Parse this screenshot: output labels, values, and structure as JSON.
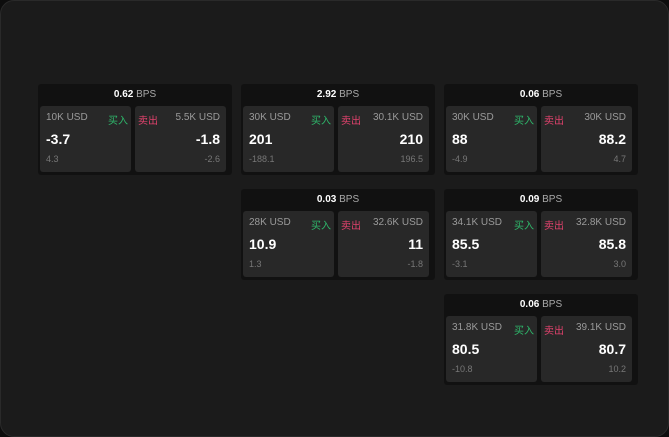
{
  "labels": {
    "buy": "买入",
    "sell": "卖出",
    "unit": "BPS"
  },
  "widgets": [
    {
      "spread": "0.62",
      "buy_size": "10K USD",
      "buy_price": "-3.7",
      "buy_change": "4.3",
      "sell_size": "5.5K USD",
      "sell_price": "-1.8",
      "sell_change": "-2.6"
    },
    {
      "spread": "2.92",
      "buy_size": "30K USD",
      "buy_price": "201",
      "buy_change": "-188.1",
      "sell_size": "30.1K USD",
      "sell_price": "210",
      "sell_change": "196.5"
    },
    {
      "spread": "0.06",
      "buy_size": "30K USD",
      "buy_price": "88",
      "buy_change": "-4.9",
      "sell_size": "30K USD",
      "sell_price": "88.2",
      "sell_change": "4.7"
    },
    {
      "spread": "0.03",
      "buy_size": "28K USD",
      "buy_price": "10.9",
      "buy_change": "1.3",
      "sell_size": "32.6K USD",
      "sell_price": "11",
      "sell_change": "-1.8"
    },
    {
      "spread": "0.09",
      "buy_size": "34.1K USD",
      "buy_price": "85.5",
      "buy_change": "-3.1",
      "sell_size": "32.8K USD",
      "sell_price": "85.8",
      "sell_change": "3.0"
    },
    {
      "spread": "0.06",
      "buy_size": "31.8K USD",
      "buy_price": "80.5",
      "buy_change": "-10.8",
      "sell_size": "39.1K USD",
      "sell_price": "80.7",
      "sell_change": "10.2"
    }
  ],
  "colors": {
    "buy": "#2eb86b",
    "sell": "#e0426c"
  }
}
